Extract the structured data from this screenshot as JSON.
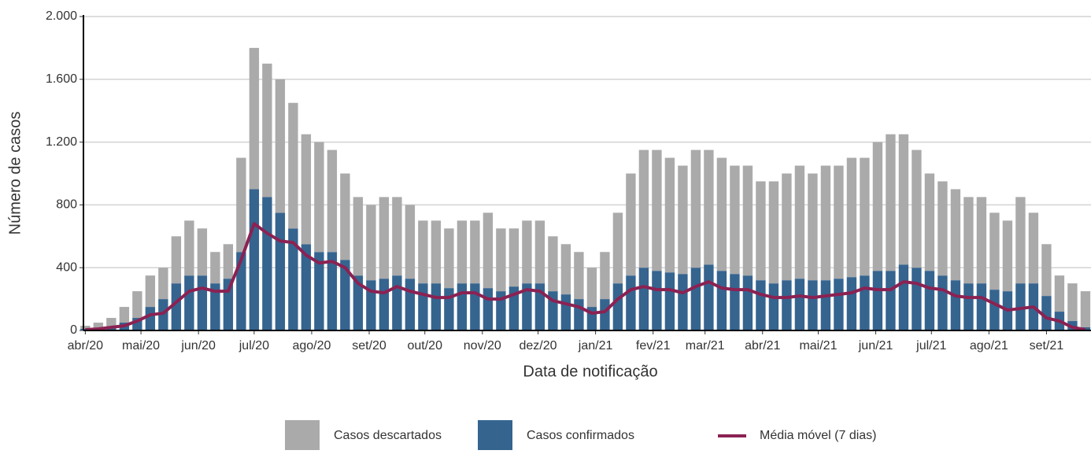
{
  "chart_data": {
    "type": "bar",
    "stacked": true,
    "x_label": "Data de notificação",
    "y_label": "Número de casos",
    "x": [
      0,
      7,
      14,
      21,
      28,
      35,
      42,
      49,
      56,
      63,
      70,
      77,
      84,
      91,
      98,
      105,
      112,
      119,
      126,
      133,
      140,
      147,
      154,
      161,
      168,
      175,
      182,
      189,
      196,
      203,
      210,
      217,
      224,
      231,
      238,
      245,
      252,
      259,
      266,
      273,
      280,
      287,
      294,
      301,
      308,
      315,
      322,
      329,
      336,
      343,
      350,
      357,
      364,
      371,
      378,
      385,
      392,
      399,
      406,
      413,
      420,
      427,
      434,
      441,
      448,
      455,
      462,
      469,
      476,
      483,
      490,
      497,
      504,
      511,
      518,
      525,
      532,
      539
    ],
    "xlim": [
      -1,
      542
    ],
    "xticks": [
      {
        "value": 0,
        "label": "abr/20"
      },
      {
        "value": 30,
        "label": "mai/20"
      },
      {
        "value": 61,
        "label": "jun/20"
      },
      {
        "value": 91,
        "label": "jul/20"
      },
      {
        "value": 122,
        "label": "ago/20"
      },
      {
        "value": 153,
        "label": "set/20"
      },
      {
        "value": 183,
        "label": "out/20"
      },
      {
        "value": 214,
        "label": "nov/20"
      },
      {
        "value": 244,
        "label": "dez/20"
      },
      {
        "value": 275,
        "label": "jan/21"
      },
      {
        "value": 306,
        "label": "fev/21"
      },
      {
        "value": 334,
        "label": "mar/21"
      },
      {
        "value": 365,
        "label": "abr/21"
      },
      {
        "value": 395,
        "label": "mai/21"
      },
      {
        "value": 426,
        "label": "jun/21"
      },
      {
        "value": 456,
        "label": "jul/21"
      },
      {
        "value": 487,
        "label": "ago/21"
      },
      {
        "value": 518,
        "label": "set/21"
      }
    ],
    "ylim": [
      0,
      2000
    ],
    "yticks": [
      0,
      400,
      800,
      {
        "value": 1200,
        "label": "1.200"
      },
      {
        "value": 1600,
        "label": "1.600"
      },
      {
        "value": 2000,
        "label": "2.000"
      }
    ],
    "grid": true,
    "legend": "bottom",
    "series": [
      {
        "name": "Casos descartados",
        "type": "bar",
        "color": "#aaaaaa",
        "values": [
          20,
          35,
          55,
          100,
          170,
          200,
          200,
          300,
          350,
          300,
          200,
          220,
          600,
          900,
          850,
          850,
          800,
          700,
          700,
          650,
          550,
          500,
          480,
          520,
          500,
          470,
          400,
          400,
          380,
          400,
          400,
          480,
          400,
          370,
          400,
          400,
          350,
          320,
          300,
          250,
          300,
          450,
          650,
          750,
          770,
          730,
          690,
          750,
          730,
          720,
          690,
          700,
          630,
          650,
          680,
          720,
          680,
          730,
          720,
          760,
          750,
          820,
          870,
          830,
          750,
          620,
          600,
          580,
          550,
          550,
          490,
          450,
          550,
          450,
          330,
          230,
          240,
          230
        ]
      },
      {
        "name": "Casos confirmados",
        "type": "bar",
        "color": "#35648f",
        "values": [
          10,
          15,
          25,
          50,
          80,
          150,
          200,
          300,
          350,
          350,
          300,
          330,
          500,
          900,
          850,
          750,
          650,
          550,
          500,
          500,
          450,
          350,
          320,
          330,
          350,
          330,
          300,
          300,
          270,
          300,
          300,
          270,
          250,
          280,
          300,
          300,
          250,
          230,
          200,
          150,
          200,
          300,
          350,
          400,
          380,
          370,
          360,
          400,
          420,
          380,
          360,
          350,
          320,
          300,
          320,
          330,
          320,
          320,
          330,
          340,
          350,
          380,
          380,
          420,
          400,
          380,
          350,
          320,
          300,
          300,
          260,
          250,
          300,
          300,
          220,
          120,
          60,
          20
        ]
      },
      {
        "name": "Média móvel (7 dias)",
        "type": "line",
        "color": "#8b2252",
        "values": [
          5,
          10,
          20,
          30,
          60,
          100,
          110,
          180,
          250,
          270,
          250,
          250,
          450,
          680,
          620,
          570,
          560,
          480,
          430,
          440,
          400,
          300,
          250,
          240,
          280,
          250,
          230,
          210,
          210,
          240,
          240,
          200,
          200,
          230,
          260,
          250,
          190,
          170,
          150,
          110,
          120,
          200,
          260,
          280,
          260,
          260,
          240,
          280,
          310,
          270,
          260,
          260,
          230,
          210,
          210,
          220,
          210,
          220,
          230,
          240,
          270,
          260,
          260,
          310,
          300,
          270,
          260,
          220,
          210,
          210,
          170,
          130,
          140,
          150,
          80,
          60,
          20,
          5
        ]
      }
    ]
  }
}
